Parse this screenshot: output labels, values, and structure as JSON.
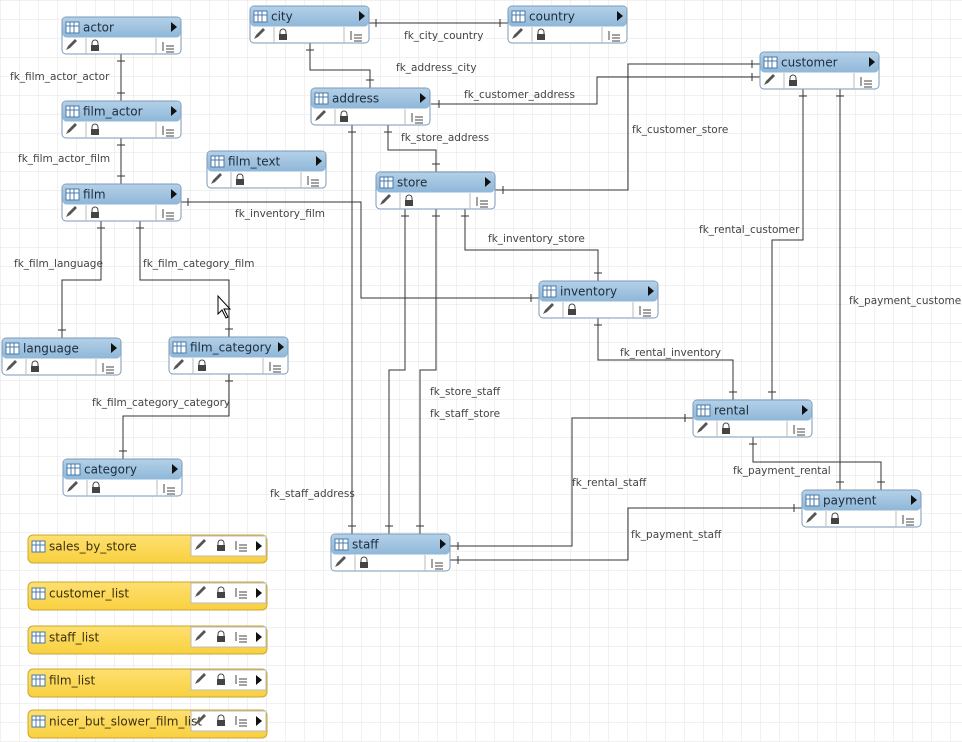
{
  "tables": [
    "actor",
    "film_actor",
    "film_text",
    "film",
    "language",
    "film_category",
    "category",
    "city",
    "country",
    "address",
    "customer",
    "store",
    "inventory",
    "rental",
    "payment",
    "staff"
  ],
  "views": [
    "sales_by_store",
    "customer_list",
    "staff_list",
    "film_list",
    "nicer_but_slower_film_list"
  ],
  "relationships": [
    "fk_film_actor_actor",
    "fk_film_actor_film",
    "fk_city_country",
    "fk_address_city",
    "fk_customer_address",
    "fk_store_address",
    "fk_customer_store",
    "fk_inventory_film",
    "fk_film_language",
    "fk_film_category_film",
    "fk_inventory_store",
    "fk_rental_customer",
    "fk_payment_customer",
    "fk_rental_inventory",
    "fk_store_staff",
    "fk_staff_store",
    "fk_film_category_category",
    "fk_payment_rental",
    "fk_rental_staff",
    "fk_staff_address",
    "fk_payment_staff"
  ]
}
